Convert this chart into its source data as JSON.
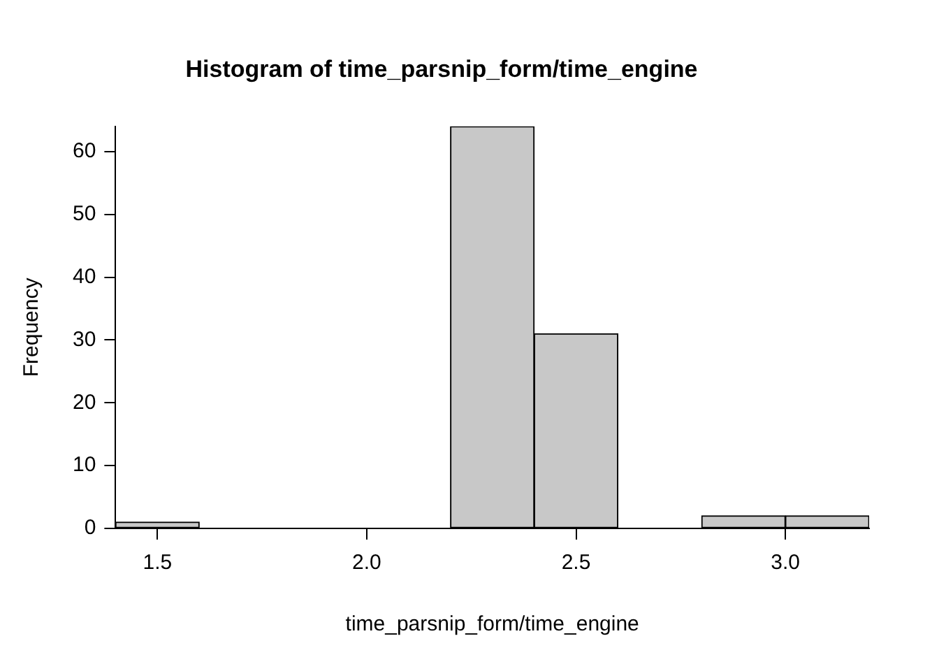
{
  "chart_data": {
    "type": "histogram",
    "title": "Histogram of time_parsnip_form/time_engine",
    "xlabel": "time_parsnip_form/time_engine",
    "ylabel": "Frequency",
    "bins": [
      1.4,
      1.6,
      1.8,
      2.0,
      2.2,
      2.4,
      2.6,
      2.8,
      3.0,
      3.2
    ],
    "values": [
      1,
      0,
      0,
      0,
      64,
      31,
      0,
      2,
      2
    ],
    "color": "#c8c8c8",
    "xlim": [
      1.4,
      3.2
    ],
    "xticks": [
      1.5,
      {
        "value": 2.0,
        "label": "2.0"
      },
      2.5,
      {
        "value": 3.0,
        "label": "3.0"
      }
    ],
    "ylim": [
      0,
      64
    ],
    "yticks": [
      0,
      10,
      20,
      30,
      40,
      50,
      60
    ],
    "grid": false,
    "legend": false
  }
}
